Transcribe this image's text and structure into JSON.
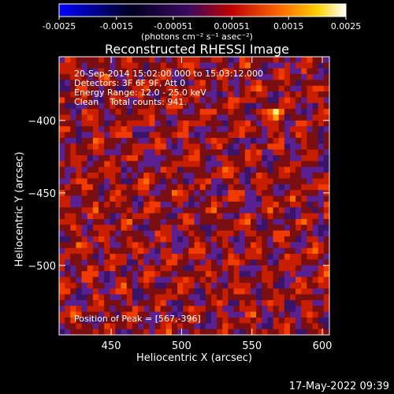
{
  "colorbar": {
    "ticks": [
      "-0.0025",
      "-0.0015",
      "-0.00051",
      "0.00051",
      "0.0015",
      "0.0025"
    ],
    "tick_values": [
      -0.0025,
      -0.0015,
      -0.00051,
      0.00051,
      0.0015,
      0.0025
    ],
    "units_text": "(photons cm⁻² s⁻¹ asec⁻²)"
  },
  "chart_data": {
    "type": "heatmap",
    "title": "Reconstructed RHESSI Image",
    "xlabel": "Heliocentric X (arcsec)",
    "ylabel": "Heliocentric Y (arcsec)",
    "xlim": [
      413,
      605
    ],
    "ylim": [
      -548,
      -356
    ],
    "x_ticks": [
      450,
      500,
      550,
      600
    ],
    "y_ticks": [
      -400,
      -450,
      -500
    ],
    "colormap": "rhessi thermal (blue-black-purple-red-orange-yellow-white)",
    "peak": {
      "x": 567,
      "y": -396
    },
    "annotations": [
      "20-Sep-2014 15:02:00.000 to 15:03:12.000",
      "Detectors: 3F 6F 9F, Att 0",
      "Energy Range: 12.0 - 25.0 keV",
      "Clean    Total counts: 941.",
      "Position of Peak = [567,-396]"
    ]
  },
  "footer": {
    "timestamp": "17-May-2022 09:39"
  }
}
